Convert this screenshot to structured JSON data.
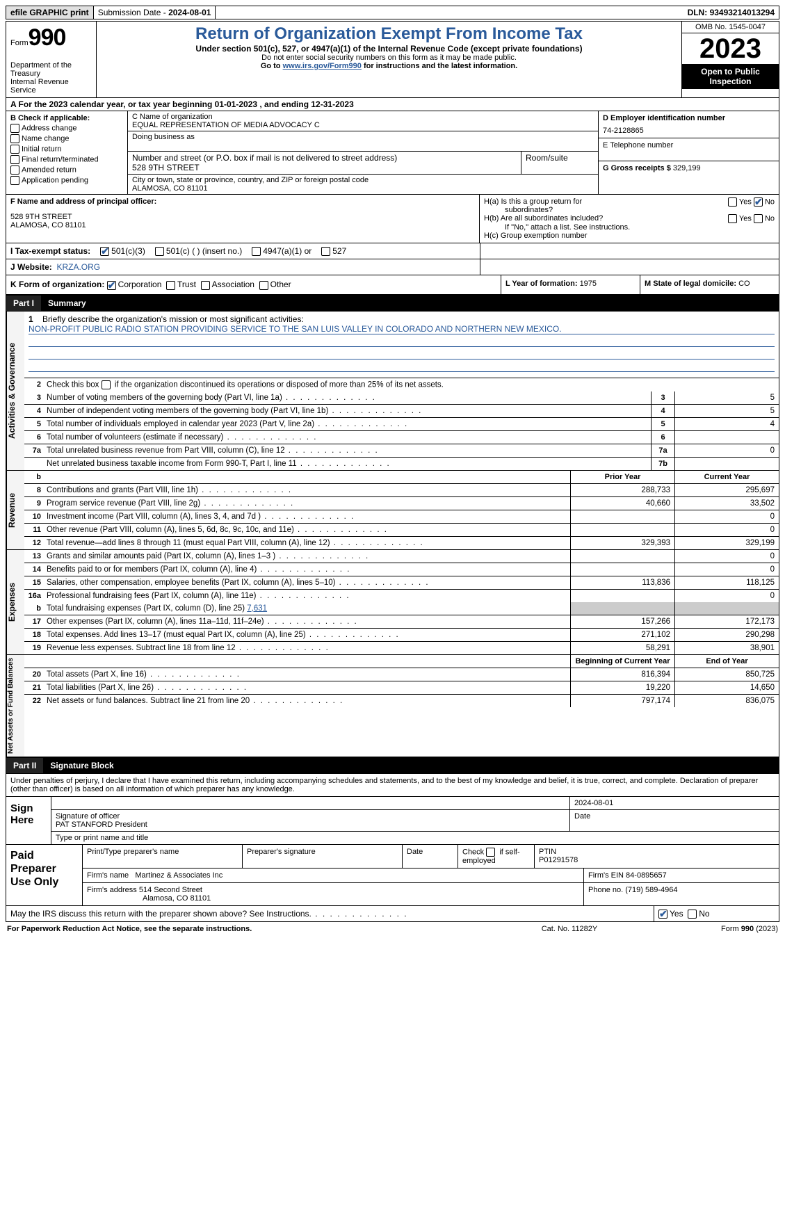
{
  "topbar": {
    "efile": "efile GRAPHIC print",
    "sub_lbl": "Submission Date - ",
    "sub_date": "2024-08-01",
    "dln_lbl": "DLN: ",
    "dln": "93493214013294"
  },
  "header": {
    "form_lbl": "Form",
    "form_num": "990",
    "dept": "Department of the Treasury\nInternal Revenue Service",
    "title": "Return of Organization Exempt From Income Tax",
    "sub": "Under section 501(c), 527, or 4947(a)(1) of the Internal Revenue Code (except private foundations)",
    "nossl": "Do not enter social security numbers on this form as it may be made public.",
    "goto": "Go to ",
    "url": "www.irs.gov/Form990",
    "goto2": " for instructions and the latest information.",
    "omb": "OMB No. 1545-0047",
    "year": "2023",
    "open": "Open to Public Inspection"
  },
  "rowA": "A For the 2023 calendar year, or tax year beginning 01-01-2023    , and ending 12-31-2023",
  "colB": {
    "hdr": "B Check if applicable:",
    "opts": [
      "Address change",
      "Name change",
      "Initial return",
      "Final return/terminated",
      "Amended return",
      "Application pending"
    ]
  },
  "colC": {
    "name_lbl": "C Name of organization",
    "name": "EQUAL REPRESENTATION OF MEDIA ADVOCACY C",
    "dba_lbl": "Doing business as",
    "addr_lbl": "Number and street (or P.O. box if mail is not delivered to street address)",
    "addr": "528 9TH STREET",
    "room_lbl": "Room/suite",
    "city_lbl": "City or town, state or province, country, and ZIP or foreign postal code",
    "city": "ALAMOSA, CO  81101"
  },
  "colD": {
    "ein_lbl": "D Employer identification number",
    "ein": "74-2128865",
    "tel_lbl": "E Telephone number",
    "gross_lbl": "G Gross receipts $ ",
    "gross": "329,199"
  },
  "colF": {
    "lbl": "F  Name and address of principal officer:",
    "addr1": "528 9TH STREET",
    "addr2": "ALAMOSA, CO  81101"
  },
  "colH": {
    "a1": "H(a)  Is this a group return for",
    "a2": "subordinates?",
    "b1": "H(b)  Are all subordinates included?",
    "b2": "If \"No,\" attach a list. See instructions.",
    "c": "H(c)  Group exemption number",
    "yes": "Yes",
    "no": "No"
  },
  "rowI": {
    "lbl": "I   Tax-exempt status:",
    "o1": "501(c)(3)",
    "o2": "501(c) (  ) (insert no.)",
    "o3": "4947(a)(1) or",
    "o4": "527"
  },
  "rowJ": {
    "lbl": "J   Website:",
    "val": "KRZA.ORG"
  },
  "rowK": {
    "lbl": "K Form of organization:",
    "o1": "Corporation",
    "o2": "Trust",
    "o3": "Association",
    "o4": "Other",
    "l_lbl": "L Year of formation: ",
    "l_val": "1975",
    "m_lbl": "M State of legal domicile: ",
    "m_val": "CO"
  },
  "part1": {
    "num": "Part I",
    "title": "Summary"
  },
  "sec_ag": {
    "side": "Activities & Governance",
    "l1_num": "1",
    "l1": "Briefly describe the organization's mission or most significant activities:",
    "l1_val": "NON-PROFIT PUBLIC RADIO STATION PROVIDING SERVICE TO THE SAN LUIS VALLEY IN COLORADO AND NORTHERN NEW MEXICO.",
    "l2_num": "2",
    "l2": "Check this box         if the organization discontinued its operations or disposed of more than 25% of its net assets.",
    "rows": [
      {
        "n": "3",
        "t": "Number of voting members of the governing body (Part VI, line 1a)",
        "box": "3",
        "v": "5"
      },
      {
        "n": "4",
        "t": "Number of independent voting members of the governing body (Part VI, line 1b)",
        "box": "4",
        "v": "5"
      },
      {
        "n": "5",
        "t": "Total number of individuals employed in calendar year 2023 (Part V, line 2a)",
        "box": "5",
        "v": "4"
      },
      {
        "n": "6",
        "t": "Total number of volunteers (estimate if necessary)",
        "box": "6",
        "v": ""
      },
      {
        "n": "7a",
        "t": "Total unrelated business revenue from Part VIII, column (C), line 12",
        "box": "7a",
        "v": "0"
      },
      {
        "n": "",
        "t": "Net unrelated business taxable income from Form 990-T, Part I, line 11",
        "box": "7b",
        "v": ""
      }
    ]
  },
  "sec_rev": {
    "side": "Revenue",
    "hdr_b": "b",
    "hdr_py": "Prior Year",
    "hdr_cy": "Current Year",
    "rows": [
      {
        "n": "8",
        "t": "Contributions and grants (Part VIII, line 1h)",
        "py": "288,733",
        "cy": "295,697"
      },
      {
        "n": "9",
        "t": "Program service revenue (Part VIII, line 2g)",
        "py": "40,660",
        "cy": "33,502"
      },
      {
        "n": "10",
        "t": "Investment income (Part VIII, column (A), lines 3, 4, and 7d )",
        "py": "",
        "cy": "0"
      },
      {
        "n": "11",
        "t": "Other revenue (Part VIII, column (A), lines 5, 6d, 8c, 9c, 10c, and 11e)",
        "py": "",
        "cy": "0"
      },
      {
        "n": "12",
        "t": "Total revenue—add lines 8 through 11 (must equal Part VIII, column (A), line 12)",
        "py": "329,393",
        "cy": "329,199"
      }
    ]
  },
  "sec_exp": {
    "side": "Expenses",
    "rows": [
      {
        "n": "13",
        "t": "Grants and similar amounts paid (Part IX, column (A), lines 1–3 )",
        "py": "",
        "cy": "0"
      },
      {
        "n": "14",
        "t": "Benefits paid to or for members (Part IX, column (A), line 4)",
        "py": "",
        "cy": "0"
      },
      {
        "n": "15",
        "t": "Salaries, other compensation, employee benefits (Part IX, column (A), lines 5–10)",
        "py": "113,836",
        "cy": "118,125"
      },
      {
        "n": "16a",
        "t": "Professional fundraising fees (Part IX, column (A), line 11e)",
        "py": "",
        "cy": "0"
      }
    ],
    "l16b_n": "b",
    "l16b": "Total fundraising expenses (Part IX, column (D), line 25) ",
    "l16b_v": "7,631",
    "rows2": [
      {
        "n": "17",
        "t": "Other expenses (Part IX, column (A), lines 11a–11d, 11f–24e)",
        "py": "157,266",
        "cy": "172,173"
      },
      {
        "n": "18",
        "t": "Total expenses. Add lines 13–17 (must equal Part IX, column (A), line 25)",
        "py": "271,102",
        "cy": "290,298"
      },
      {
        "n": "19",
        "t": "Revenue less expenses. Subtract line 18 from line 12",
        "py": "58,291",
        "cy": "38,901"
      }
    ]
  },
  "sec_na": {
    "side": "Net Assets or Fund Balances",
    "hdr_py": "Beginning of Current Year",
    "hdr_cy": "End of Year",
    "rows": [
      {
        "n": "20",
        "t": "Total assets (Part X, line 16)",
        "py": "816,394",
        "cy": "850,725"
      },
      {
        "n": "21",
        "t": "Total liabilities (Part X, line 26)",
        "py": "19,220",
        "cy": "14,650"
      },
      {
        "n": "22",
        "t": "Net assets or fund balances. Subtract line 21 from line 20",
        "py": "797,174",
        "cy": "836,075"
      }
    ]
  },
  "part2": {
    "num": "Part II",
    "title": "Signature Block"
  },
  "sig": "Under penalties of perjury, I declare that I have examined this return, including accompanying schedules and statements, and to the best of my knowledge and belief, it is true, correct, and complete. Declaration of preparer (other than officer) is based on all information of which preparer has any knowledge.",
  "sign": {
    "lbl": "Sign Here",
    "date": "2024-08-01",
    "sig_lbl": "Signature of officer",
    "name": "PAT STANFORD  President",
    "type_lbl": "Type or print name and title",
    "date_lbl": "Date"
  },
  "prep": {
    "lbl": "Paid Preparer Use Only",
    "h1": "Print/Type preparer's name",
    "h2": "Preparer's signature",
    "h3": "Date",
    "h4_a": "Check",
    "h4_b": "if self-employed",
    "h5": "PTIN",
    "ptin": "P01291578",
    "firm_lbl": "Firm's name",
    "firm": "Martinez & Associates Inc",
    "fein_lbl": "Firm's EIN",
    "fein": "84-0895657",
    "addr_lbl": "Firm's address",
    "addr1": "514 Second Street",
    "addr2": "Alamosa, CO  81101",
    "phone_lbl": "Phone no.",
    "phone": "(719) 589-4964"
  },
  "may": {
    "q": "May the IRS discuss this return with the preparer shown above? See Instructions.",
    "yes": "Yes",
    "no": "No"
  },
  "footer": {
    "l": "For Paperwork Reduction Act Notice, see the separate instructions.",
    "m": "Cat. No. 11282Y",
    "r1": "Form ",
    "r2": "990",
    "r3": " (2023)"
  }
}
